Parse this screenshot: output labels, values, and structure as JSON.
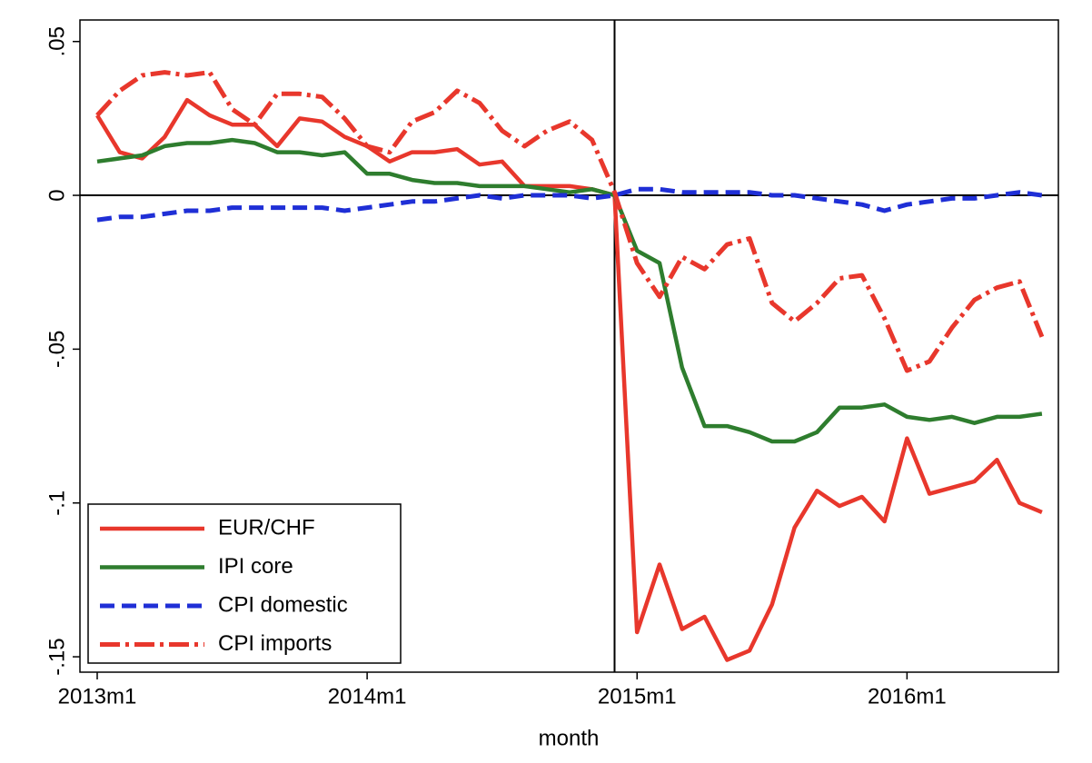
{
  "chart_data": {
    "type": "line",
    "x": [
      "2013m1",
      "2013m2",
      "2013m3",
      "2013m4",
      "2013m5",
      "2013m6",
      "2013m7",
      "2013m8",
      "2013m9",
      "2013m10",
      "2013m11",
      "2013m12",
      "2014m1",
      "2014m2",
      "2014m3",
      "2014m4",
      "2014m5",
      "2014m6",
      "2014m7",
      "2014m8",
      "2014m9",
      "2014m10",
      "2014m11",
      "2014m12",
      "2015m1",
      "2015m2",
      "2015m3",
      "2015m4",
      "2015m5",
      "2015m6",
      "2015m7",
      "2015m8",
      "2015m9",
      "2015m10",
      "2015m11",
      "2015m12",
      "2016m1",
      "2016m2",
      "2016m3",
      "2016m4",
      "2016m5",
      "2016m6",
      "2016m7"
    ],
    "xticks": [
      "2013m1",
      "2014m1",
      "2015m1",
      "2016m1"
    ],
    "xlabel": "month",
    "ylim": [
      -0.155,
      0.057
    ],
    "yticks": [
      {
        "value": 0.05,
        "label": ".05"
      },
      0,
      {
        "value": -0.05,
        "label": "-.05"
      },
      {
        "value": -0.1,
        "label": "-.1"
      },
      {
        "value": -0.15,
        "label": "-.15"
      }
    ],
    "hline": 0,
    "vline": "2014m12",
    "legend": "lower left",
    "series": [
      {
        "name": "EUR/CHF",
        "color": "#e8372c",
        "style": "solid",
        "values": [
          0.026,
          0.014,
          0.012,
          0.019,
          0.031,
          0.026,
          0.023,
          0.023,
          0.016,
          0.025,
          0.024,
          0.019,
          0.016,
          0.011,
          0.014,
          0.014,
          0.015,
          0.01,
          0.011,
          0.003,
          0.003,
          0.003,
          0.002,
          0.0,
          -0.142,
          -0.12,
          -0.141,
          -0.137,
          -0.151,
          -0.148,
          -0.133,
          -0.108,
          -0.096,
          -0.101,
          -0.098,
          -0.106,
          -0.079,
          -0.097,
          -0.095,
          -0.093,
          -0.086,
          -0.1,
          -0.103
        ]
      },
      {
        "name": "IPI core",
        "color": "#2e7d2e",
        "style": "solid",
        "values": [
          0.011,
          0.012,
          0.013,
          0.016,
          0.017,
          0.017,
          0.018,
          0.017,
          0.014,
          0.014,
          0.013,
          0.014,
          0.007,
          0.007,
          0.005,
          0.004,
          0.004,
          0.003,
          0.003,
          0.003,
          0.002,
          0.001,
          0.002,
          0.0,
          -0.018,
          -0.022,
          -0.056,
          -0.075,
          -0.075,
          -0.077,
          -0.08,
          -0.08,
          -0.077,
          -0.069,
          -0.069,
          -0.068,
          -0.072,
          -0.073,
          -0.072,
          -0.074,
          -0.072,
          -0.072,
          -0.071
        ]
      },
      {
        "name": "CPI domestic",
        "color": "#1f2fd6",
        "style": "dash",
        "values": [
          -0.008,
          -0.007,
          -0.007,
          -0.006,
          -0.005,
          -0.005,
          -0.004,
          -0.004,
          -0.004,
          -0.004,
          -0.004,
          -0.005,
          -0.004,
          -0.003,
          -0.002,
          -0.002,
          -0.001,
          0.0,
          -0.001,
          0.0,
          0.0,
          0.0,
          -0.001,
          0.0,
          0.002,
          0.002,
          0.001,
          0.001,
          0.001,
          0.001,
          0.0,
          0.0,
          -0.001,
          -0.002,
          -0.003,
          -0.005,
          -0.003,
          -0.002,
          -0.001,
          -0.001,
          0.0,
          0.001,
          0.0
        ]
      },
      {
        "name": "CPI imports",
        "color": "#e8372c",
        "style": "dashdot",
        "values": [
          0.026,
          0.034,
          0.039,
          0.04,
          0.039,
          0.04,
          0.028,
          0.023,
          0.033,
          0.033,
          0.032,
          0.025,
          0.016,
          0.014,
          0.024,
          0.027,
          0.034,
          0.03,
          0.021,
          0.016,
          0.021,
          0.024,
          0.018,
          0.001,
          -0.022,
          -0.033,
          -0.02,
          -0.024,
          -0.016,
          -0.014,
          -0.035,
          -0.041,
          -0.035,
          -0.027,
          -0.026,
          -0.04,
          -0.057,
          -0.054,
          -0.043,
          -0.034,
          -0.03,
          -0.028,
          -0.046
        ]
      }
    ]
  }
}
